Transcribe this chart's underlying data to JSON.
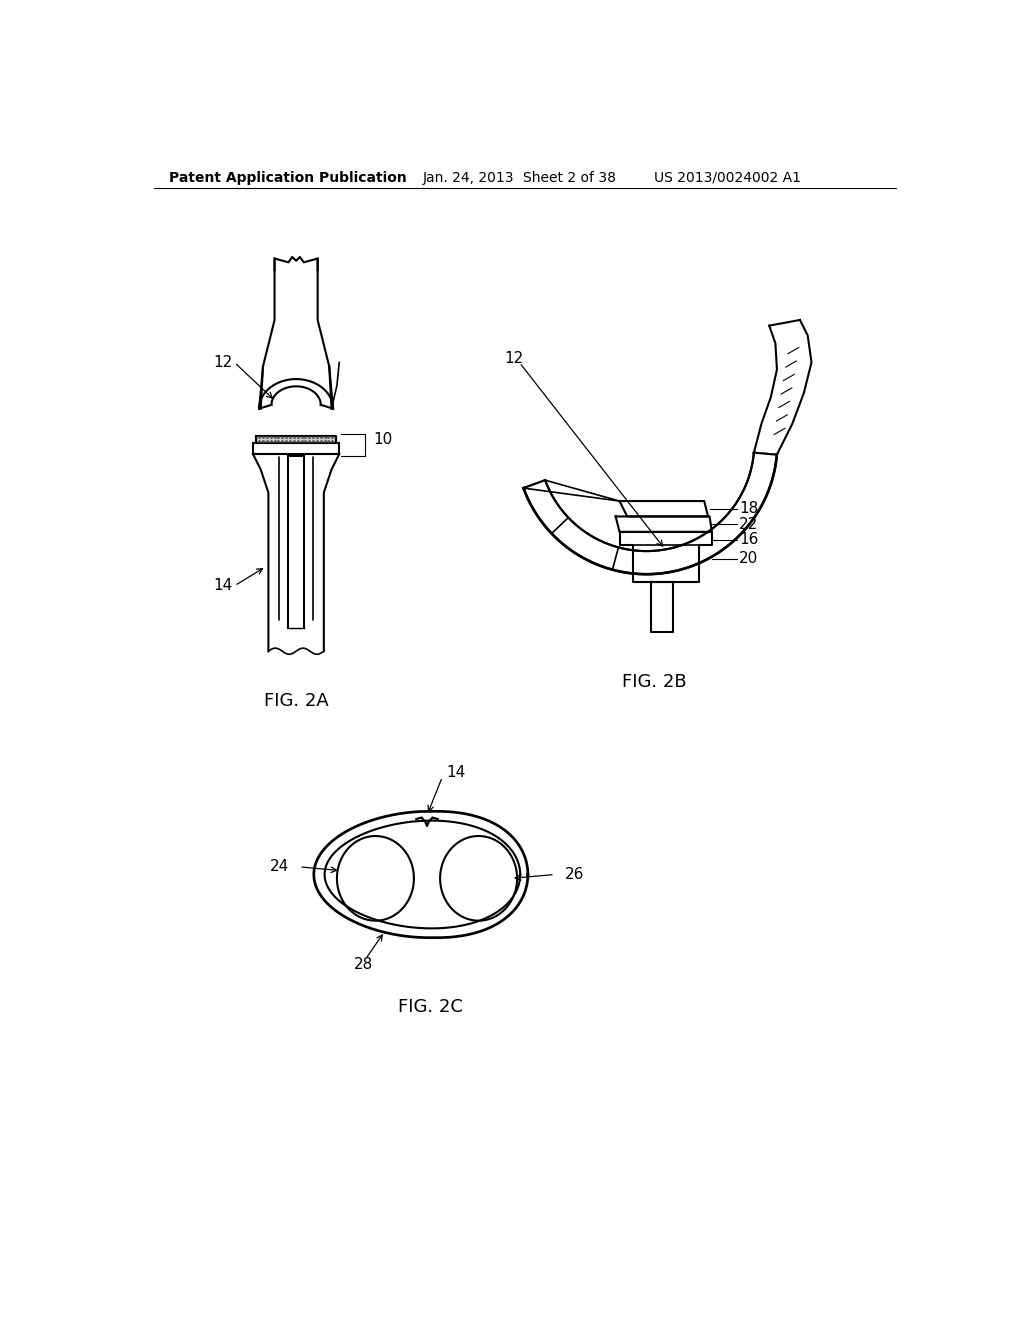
{
  "background_color": "#ffffff",
  "header_text": "Patent Application Publication",
  "header_date": "Jan. 24, 2013",
  "header_sheet": "Sheet 2 of 38",
  "header_patent": "US 2013/0024002 A1",
  "fig2a_label": "FIG. 2A",
  "fig2b_label": "FIG. 2B",
  "fig2c_label": "FIG. 2C",
  "line_color": "#000000",
  "line_width": 1.5,
  "label_fontsize": 11,
  "header_fontsize": 10,
  "fig_label_fontsize": 13
}
